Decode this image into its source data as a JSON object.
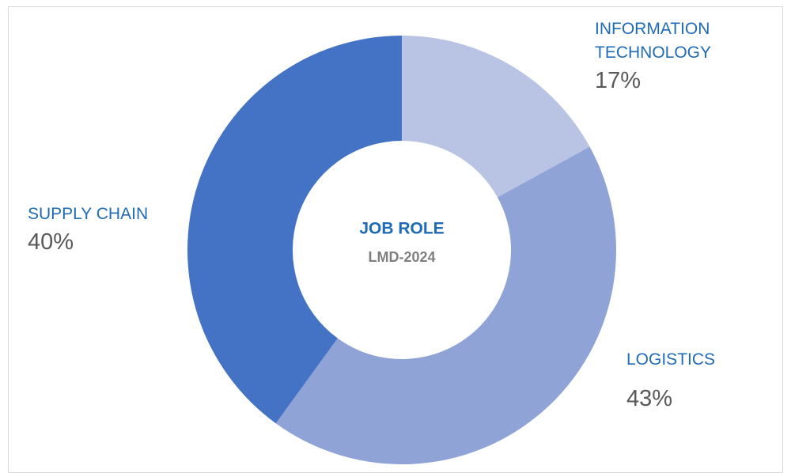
{
  "chart_data": {
    "type": "donut",
    "title": "JOB ROLE",
    "subtitle": "LMD-2024",
    "categories": [
      "INFORMATION TECHNOLOGY",
      "LOGISTICS",
      "SUPPLY CHAIN"
    ],
    "values": [
      17,
      43,
      40
    ],
    "value_labels": [
      "17%",
      "43%",
      "40%"
    ],
    "colors": [
      "#b9c3e4",
      "#8fa3d6",
      "#4472c4"
    ]
  }
}
